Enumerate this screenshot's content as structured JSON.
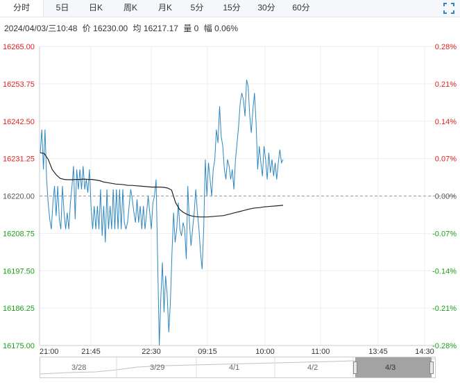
{
  "tabs": [
    {
      "label": "分时",
      "active": true
    },
    {
      "label": "5日"
    },
    {
      "label": "日K"
    },
    {
      "label": "周K"
    },
    {
      "label": "月K"
    },
    {
      "label": "5分"
    },
    {
      "label": "15分"
    },
    {
      "label": "30分"
    },
    {
      "label": "60分"
    }
  ],
  "info": {
    "datetime": "2024/04/03/三10:48",
    "price_label": "价",
    "price": "16230.00",
    "avg_label": "均",
    "avg": "16217.17",
    "vol_label": "量",
    "vol": "0",
    "amp_label": "幅",
    "amp": "0.06%"
  },
  "navigator": {
    "labels": [
      "3/28",
      "3/29",
      "4/1",
      "4/2",
      "4/3"
    ]
  },
  "chart_data": {
    "type": "line",
    "prev_close": 16220.0,
    "ylim": [
      16175.0,
      16265.0
    ],
    "y_ticks": [
      "16265.00",
      "16253.75",
      "16242.50",
      "16231.25",
      "16220.00",
      "16208.75",
      "16197.50",
      "16186.25",
      "16175.00"
    ],
    "pct_ticks": [
      "0.28%",
      "0.21%",
      "0.14%",
      "0.07%",
      "0.00%",
      "-0.07%",
      "-0.14%",
      "-0.21%",
      "-0.28%"
    ],
    "x_ticks": [
      "21:00",
      "21:45",
      "22:30",
      "09:15",
      "10:00",
      "11:00",
      "13:45",
      "14:30"
    ],
    "series": [
      {
        "values": [
          16233,
          16240,
          16228,
          16240,
          16225,
          16218,
          16213,
          16210,
          16218,
          16223,
          16214,
          16223,
          16213,
          16210,
          16223,
          16215,
          16210,
          16215,
          16210,
          16218,
          16223,
          16229,
          16213,
          16228,
          16222,
          16228,
          16222,
          16229,
          16222,
          16225,
          16221,
          16228,
          16217,
          16210,
          16217,
          16210,
          16217,
          16210,
          16222,
          16208,
          16217,
          16206,
          16222,
          16210,
          16217,
          16210,
          16222,
          16210,
          16222,
          16210,
          16222,
          16210,
          16222,
          16212,
          16210,
          16212,
          16217,
          16222,
          16219,
          16215,
          16212,
          16219,
          16212,
          16217,
          16210,
          16217,
          16210,
          16215,
          16220,
          16215,
          16210,
          16218,
          16220,
          16225,
          16200,
          16175,
          16190,
          16200,
          16185,
          16196,
          16190,
          16179,
          16188,
          16203,
          16215,
          16206,
          16210,
          16218,
          16210,
          16208,
          16212,
          16210,
          16201,
          16223,
          16212,
          16205,
          16210,
          16215,
          16222,
          16215,
          16210,
          16203,
          16198,
          16210,
          16231,
          16220,
          16230,
          16225,
          16220,
          16228,
          16231,
          16240,
          16236,
          16247,
          16238,
          16235,
          16228,
          16225,
          16231,
          16229,
          16225,
          16228,
          16222,
          16231,
          16236,
          16241,
          16248,
          16251,
          16249,
          16244,
          16255,
          16253,
          16244,
          16239,
          16246,
          16251,
          16242,
          16228,
          16235,
          16230,
          16226,
          16235,
          16231,
          16225,
          16233,
          16227,
          16231,
          16226,
          16230,
          16225,
          16230,
          16234,
          16230,
          16231
        ],
        "color": "#2e86c1"
      },
      {
        "values": [
          16233,
          16232.8,
          16231,
          16228,
          16226.4,
          16225.3,
          16225,
          16224.9,
          16224.9,
          16225,
          16225,
          16225.1,
          16225,
          16225,
          16224.8,
          16224.6,
          16224.2,
          16224,
          16223.8,
          16223.6,
          16223.5,
          16223.4,
          16223.2,
          16223.2,
          16223.1,
          16223,
          16222.9,
          16222.8,
          16222.7,
          16222.7,
          16222.7,
          16222.6,
          16222.4,
          16221.8,
          16218,
          16216,
          16215,
          16214.4,
          16214,
          16213.8,
          16213.7,
          16213.7,
          16213.7,
          16213.8,
          16213.9,
          16214,
          16214.1,
          16214.4,
          16214.7,
          16215,
          16215.3,
          16215.6,
          16215.9,
          16216.2,
          16216.4,
          16216.5,
          16216.7,
          16216.8,
          16216.9,
          16217,
          16217.1,
          16217.2
        ],
        "color": "#222222"
      }
    ]
  }
}
